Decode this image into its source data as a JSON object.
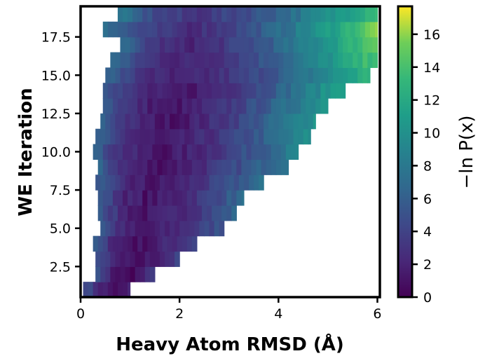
{
  "chart_data": {
    "type": "heatmap",
    "title": "",
    "xlabel": "Heavy Atom RMSD (Å)",
    "ylabel": "WE Iteration",
    "xlim": [
      0,
      6.05
    ],
    "ylim": [
      0.5,
      19.5
    ],
    "x_ticks": [
      "0",
      "2",
      "4",
      "6"
    ],
    "y_ticks": [
      "2.5",
      "5.0",
      "7.5",
      "10.0",
      "12.5",
      "15.0",
      "17.5"
    ],
    "colorbar": {
      "label": "−ln P(x)",
      "colormap": "viridis",
      "range": [
        0,
        17.7
      ],
      "ticks": [
        "0",
        "2",
        "4",
        "6",
        "8",
        "10",
        "12",
        "14",
        "16"
      ]
    },
    "rows": [
      {
        "iteration": 1,
        "rmsd_min": 0.05,
        "rmsd_max": 1.0,
        "value_min": 0.2,
        "value_max": 3.0
      },
      {
        "iteration": 2,
        "rmsd_min": 0.3,
        "rmsd_max": 1.5,
        "value_min": 0.2,
        "value_max": 3.5
      },
      {
        "iteration": 3,
        "rmsd_min": 0.3,
        "rmsd_max": 2.0,
        "value_min": 0.5,
        "value_max": 4.0
      },
      {
        "iteration": 4,
        "rmsd_min": 0.25,
        "rmsd_max": 2.35,
        "value_min": 0.8,
        "value_max": 4.5
      },
      {
        "iteration": 5,
        "rmsd_min": 0.4,
        "rmsd_max": 2.9,
        "value_min": 1.0,
        "value_max": 5.5
      },
      {
        "iteration": 6,
        "rmsd_min": 0.35,
        "rmsd_max": 3.15,
        "value_min": 1.0,
        "value_max": 6.5
      },
      {
        "iteration": 7,
        "rmsd_min": 0.35,
        "rmsd_max": 3.3,
        "value_min": 1.0,
        "value_max": 7.0
      },
      {
        "iteration": 8,
        "rmsd_min": 0.3,
        "rmsd_max": 3.7,
        "value_min": 1.0,
        "value_max": 7.5
      },
      {
        "iteration": 9,
        "rmsd_min": 0.35,
        "rmsd_max": 4.2,
        "value_min": 1.0,
        "value_max": 8.5
      },
      {
        "iteration": 10,
        "rmsd_min": 0.25,
        "rmsd_max": 4.4,
        "value_min": 1.0,
        "value_max": 9.0
      },
      {
        "iteration": 11,
        "rmsd_min": 0.3,
        "rmsd_max": 4.65,
        "value_min": 1.0,
        "value_max": 10.0
      },
      {
        "iteration": 12,
        "rmsd_min": 0.4,
        "rmsd_max": 4.75,
        "value_min": 1.0,
        "value_max": 10.5
      },
      {
        "iteration": 13,
        "rmsd_min": 0.45,
        "rmsd_max": 5.0,
        "value_min": 1.0,
        "value_max": 11.0
      },
      {
        "iteration": 14,
        "rmsd_min": 0.45,
        "rmsd_max": 5.35,
        "value_min": 1.0,
        "value_max": 12.0
      },
      {
        "iteration": 15,
        "rmsd_min": 0.5,
        "rmsd_max": 5.85,
        "value_min": 1.5,
        "value_max": 13.0
      },
      {
        "iteration": 16,
        "rmsd_min": 0.6,
        "rmsd_max": 6.0,
        "value_min": 2.0,
        "value_max": 14.5
      },
      {
        "iteration": 17,
        "rmsd_min": 0.8,
        "rmsd_max": 6.0,
        "value_min": 2.0,
        "value_max": 15.5
      },
      {
        "iteration": 18,
        "rmsd_min": 0.45,
        "rmsd_max": 6.0,
        "value_min": 2.5,
        "value_max": 16.0
      },
      {
        "iteration": 19,
        "rmsd_min": 0.75,
        "rmsd_max": 6.0,
        "value_min": 3.0,
        "value_max": 14.0
      }
    ]
  }
}
